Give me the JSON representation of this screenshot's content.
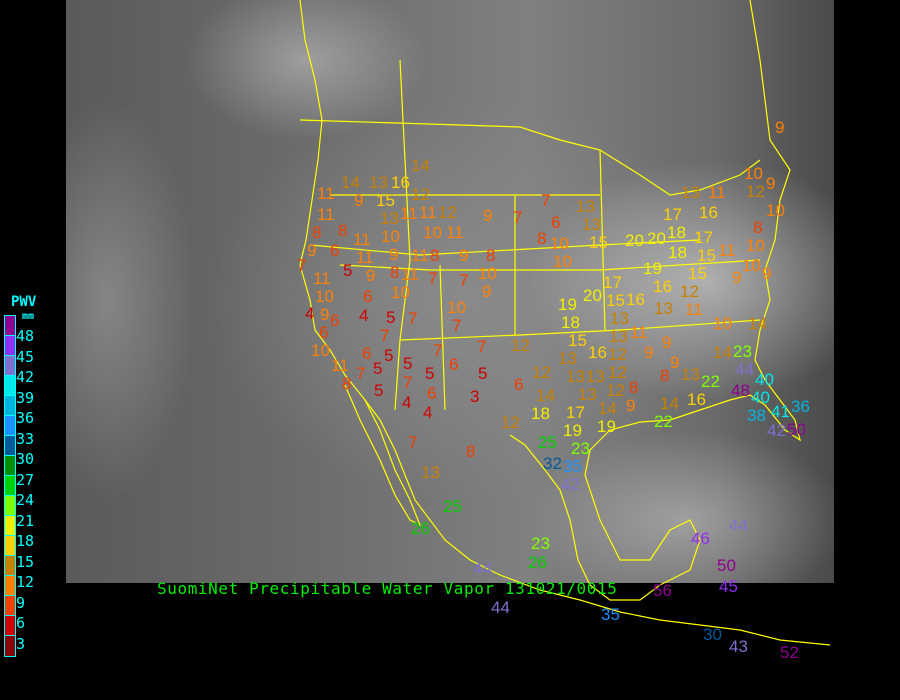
{
  "caption": "SuomiNet Precipitable Water Vapor 131021/0015",
  "legend": {
    "title": "PWV",
    "unit": "mm",
    "labels": [
      "48",
      "45",
      "42",
      "39",
      "36",
      "33",
      "30",
      "27",
      "24",
      "21",
      "18",
      "15",
      "12",
      "9",
      "6",
      "3"
    ],
    "colors": [
      "#900090",
      "#9030f0",
      "#8070d0",
      "#00e8e8",
      "#00b4e0",
      "#1e90ff",
      "#005a9a",
      "#009000",
      "#00d000",
      "#80ff00",
      "#f0f000",
      "#ffd000",
      "#c88000",
      "#ff8000",
      "#f04000",
      "#d00000",
      "#8b0000"
    ]
  },
  "colors": {
    "border": "#ffff00",
    "caption": "#00ee00",
    "legend_text": "#00ffff"
  },
  "stations": [
    14,
    14,
    13,
    16,
    12,
    11,
    9,
    15,
    13,
    11,
    11,
    12,
    11,
    8,
    9,
    7,
    10,
    10,
    11,
    8,
    11,
    11,
    9,
    11,
    8,
    9,
    8,
    9,
    6,
    7,
    5,
    9,
    8,
    11,
    7,
    7,
    10,
    9,
    11,
    10,
    6,
    10,
    4,
    9,
    6,
    4,
    5,
    7,
    10,
    7,
    7,
    6,
    8,
    10,
    6,
    10,
    6,
    5,
    5,
    5,
    7,
    7,
    5,
    8,
    11,
    5,
    6,
    4,
    4,
    7,
    7,
    6,
    7,
    5,
    3,
    12,
    7,
    8,
    13,
    6,
    12,
    18,
    15,
    16,
    12,
    13,
    11,
    13,
    12,
    13,
    13,
    12,
    14,
    13,
    12,
    14,
    8,
    9,
    18,
    17,
    19,
    19,
    14,
    16,
    22,
    25,
    23,
    32,
    35,
    42,
    9,
    9,
    9,
    8,
    13,
    14,
    23,
    22,
    44,
    48,
    40,
    40,
    38,
    41,
    36,
    42,
    50,
    10,
    14,
    9,
    10,
    12,
    9,
    13,
    11,
    10,
    16,
    8,
    13,
    13,
    17,
    15,
    20,
    20,
    18,
    17,
    18,
    10,
    11,
    10,
    19,
    15,
    10,
    9,
    16,
    15,
    9,
    12,
    11,
    20,
    17,
    16,
    19,
    15,
    13,
    13,
    25,
    26,
    23,
    26,
    44,
    44,
    56,
    35,
    30,
    43,
    44,
    46,
    50,
    45,
    52
  ]
}
